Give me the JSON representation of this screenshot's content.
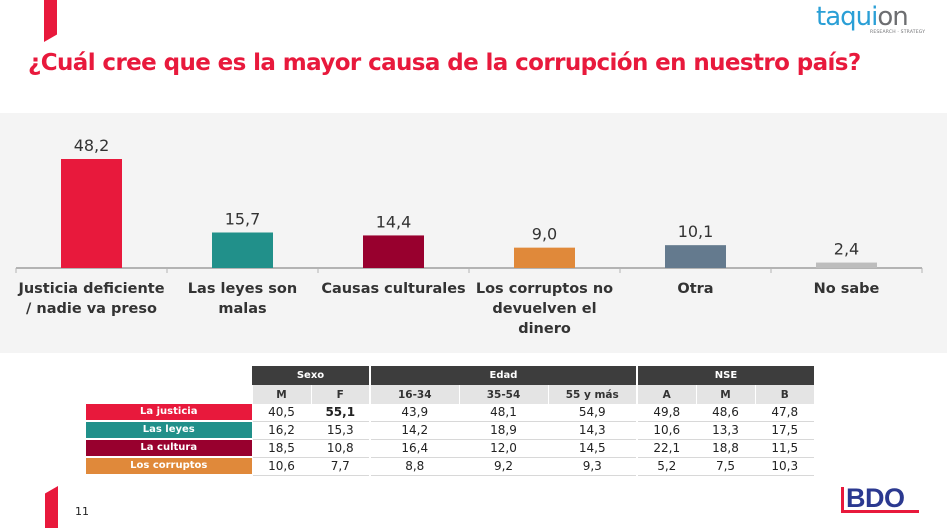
{
  "header": {
    "title": "¿Cuál cree que es la mayor causa de la corrupción en nuestro país?",
    "logo_taquion": {
      "main": "taqui",
      "accent": "on",
      "tagline": "RESEARCH · STRATEGY"
    }
  },
  "footer": {
    "page_number": "11",
    "logo_bdo": "BDO"
  },
  "colors": {
    "brand_red": "#e8193c",
    "panel_bg": "#f4f4f4"
  },
  "chart_data": {
    "type": "bar",
    "title": "¿Cuál cree que es la mayor causa de la corrupción en nuestro país?",
    "xlabel": "",
    "ylabel": "",
    "ylim": [
      0,
      50
    ],
    "grid": false,
    "legend": "none",
    "categories": [
      [
        "Justicia deficiente",
        "/ nadie va preso"
      ],
      [
        "Las  leyes son",
        "malas"
      ],
      [
        "Causas culturales"
      ],
      [
        "Los corruptos no",
        "devuelven el",
        "dinero"
      ],
      [
        "Otra"
      ],
      [
        "No sabe"
      ]
    ],
    "values": [
      48.2,
      15.7,
      14.4,
      9.0,
      10.1,
      2.4
    ],
    "value_labels": [
      "48,2",
      "15,7",
      "14,4",
      "9,0",
      "10,1",
      "2,4"
    ],
    "bar_colors": [
      "#e8193c",
      "#21908a",
      "#98002e",
      "#e0893a",
      "#647a8e",
      "#bdbdbd"
    ]
  },
  "crosstab": {
    "groups": [
      {
        "label": "Sexo",
        "span": 2
      },
      {
        "label": "Edad",
        "span": 3
      },
      {
        "label": "NSE",
        "span": 3
      }
    ],
    "columns": [
      "M",
      "F",
      "16-34",
      "35-54",
      "55 y más",
      "A",
      "M",
      "B"
    ],
    "rows": [
      {
        "label": "La justicia",
        "color": "#e8193c",
        "values": [
          "40,5",
          "55,1",
          "43,9",
          "48,1",
          "54,9",
          "49,8",
          "48,6",
          "47,8"
        ],
        "bold_index": 1
      },
      {
        "label": "Las leyes",
        "color": "#21908a",
        "values": [
          "16,2",
          "15,3",
          "14,2",
          "18,9",
          "14,3",
          "10,6",
          "13,3",
          "17,5"
        ]
      },
      {
        "label": "La cultura",
        "color": "#98002e",
        "values": [
          "18,5",
          "10,8",
          "16,4",
          "12,0",
          "14,5",
          "22,1",
          "18,8",
          "11,5"
        ]
      },
      {
        "label": "Los corruptos",
        "color": "#e0893a",
        "values": [
          "10,6",
          "7,7",
          "8,8",
          "9,2",
          "9,3",
          "5,2",
          "7,5",
          "10,3"
        ]
      }
    ]
  }
}
